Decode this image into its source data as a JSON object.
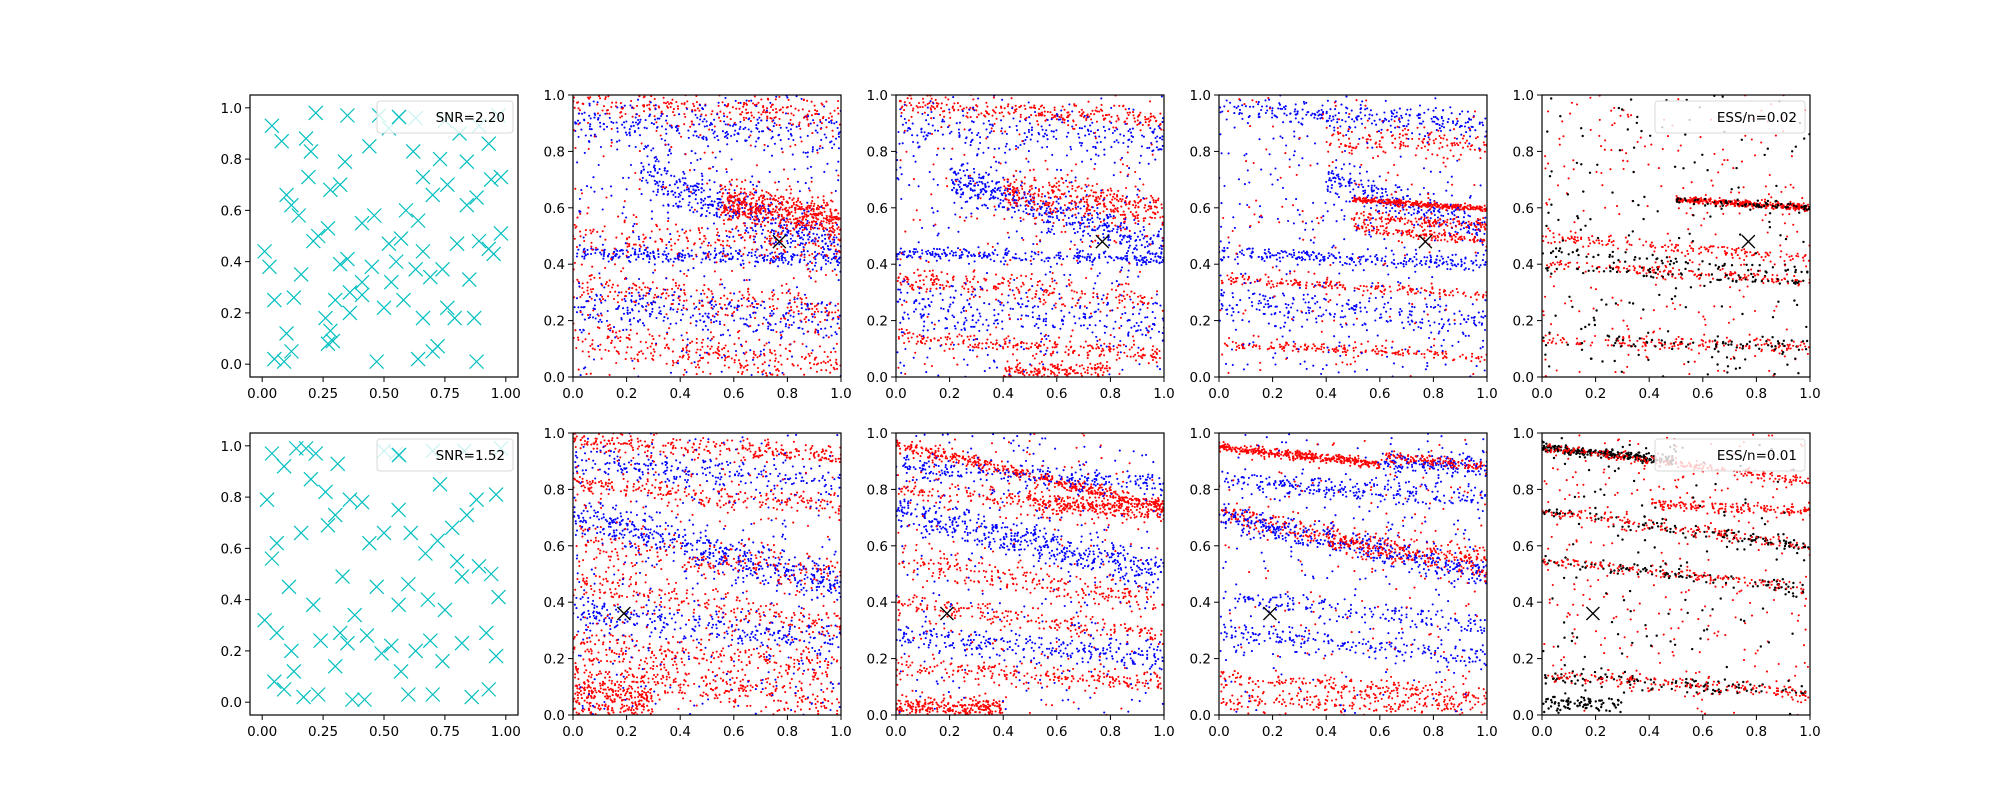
{
  "chart_data": {
    "type": "scatter",
    "layout": {
      "rows": 2,
      "cols": 5
    },
    "colors": {
      "design_points": "#00bfbf",
      "blue": "#0000ff",
      "red": "#ff0000",
      "black": "#000000",
      "truth_marker": "#000000"
    },
    "axes": {
      "design": {
        "xlim": [
          -0.05,
          1.05
        ],
        "ylim": [
          -0.05,
          1.05
        ],
        "xticks": [
          "0.00",
          "0.25",
          "0.50",
          "0.75",
          "1.00"
        ],
        "yticks": [
          "0.0",
          "0.2",
          "0.4",
          "0.6",
          "0.8",
          "1.0"
        ]
      },
      "posterior": {
        "xlim": [
          0,
          1
        ],
        "ylim": [
          0,
          1
        ],
        "xticks": [
          "0.0",
          "0.2",
          "0.4",
          "0.6",
          "0.8",
          "1.0"
        ],
        "yticks": [
          "0.0",
          "0.2",
          "0.4",
          "0.6",
          "0.8",
          "1.0"
        ]
      }
    },
    "rows": [
      {
        "legend_design": "SNR=2.20",
        "legend_ess": "ESS/n=0.02",
        "true_point": [
          0.77,
          0.48
        ],
        "design_points": [
          [
            0.04,
            0.93
          ],
          [
            0.08,
            0.87
          ],
          [
            0.22,
            0.98
          ],
          [
            0.35,
            0.97
          ],
          [
            0.48,
            0.97
          ],
          [
            0.63,
            0.96
          ],
          [
            0.75,
            0.95
          ],
          [
            0.97,
            0.97
          ],
          [
            0.18,
            0.88
          ],
          [
            0.2,
            0.83
          ],
          [
            0.34,
            0.79
          ],
          [
            0.62,
            0.83
          ],
          [
            0.73,
            0.8
          ],
          [
            0.84,
            0.79
          ],
          [
            0.93,
            0.86
          ],
          [
            0.98,
            0.73
          ],
          [
            0.1,
            0.66
          ],
          [
            0.12,
            0.62
          ],
          [
            0.28,
            0.68
          ],
          [
            0.32,
            0.7
          ],
          [
            0.19,
            0.73
          ],
          [
            0.46,
            0.58
          ],
          [
            0.59,
            0.6
          ],
          [
            0.64,
            0.56
          ],
          [
            0.7,
            0.66
          ],
          [
            0.76,
            0.7
          ],
          [
            0.84,
            0.62
          ],
          [
            0.88,
            0.65
          ],
          [
            0.94,
            0.72
          ],
          [
            0.23,
            0.5
          ],
          [
            0.21,
            0.48
          ],
          [
            0.27,
            0.53
          ],
          [
            0.41,
            0.55
          ],
          [
            0.52,
            0.47
          ],
          [
            0.57,
            0.49
          ],
          [
            0.66,
            0.44
          ],
          [
            0.8,
            0.47
          ],
          [
            0.89,
            0.48
          ],
          [
            0.93,
            0.45
          ],
          [
            0.98,
            0.51
          ],
          [
            0.01,
            0.44
          ],
          [
            0.03,
            0.38
          ],
          [
            0.16,
            0.35
          ],
          [
            0.32,
            0.39
          ],
          [
            0.35,
            0.41
          ],
          [
            0.45,
            0.38
          ],
          [
            0.55,
            0.4
          ],
          [
            0.63,
            0.37
          ],
          [
            0.69,
            0.34
          ],
          [
            0.74,
            0.37
          ],
          [
            0.85,
            0.33
          ],
          [
            0.3,
            0.25
          ],
          [
            0.36,
            0.28
          ],
          [
            0.41,
            0.27
          ],
          [
            0.58,
            0.25
          ],
          [
            0.76,
            0.22
          ],
          [
            0.79,
            0.18
          ],
          [
            0.05,
            0.25
          ],
          [
            0.13,
            0.26
          ],
          [
            0.26,
            0.18
          ],
          [
            0.28,
            0.13
          ],
          [
            0.36,
            0.2
          ],
          [
            0.5,
            0.22
          ],
          [
            0.66,
            0.18
          ],
          [
            0.87,
            0.18
          ],
          [
            0.1,
            0.12
          ],
          [
            0.12,
            0.05
          ],
          [
            0.27,
            0.08
          ],
          [
            0.29,
            0.09
          ],
          [
            0.05,
            0.02
          ],
          [
            0.09,
            0.01
          ],
          [
            0.47,
            0.01
          ],
          [
            0.64,
            0.02
          ],
          [
            0.7,
            0.05
          ],
          [
            0.72,
            0.07
          ],
          [
            0.88,
            0.01
          ],
          [
            0.41,
            0.32
          ],
          [
            0.53,
            0.32
          ],
          [
            0.95,
            0.43
          ],
          [
            0.15,
            0.58
          ],
          [
            0.44,
            0.85
          ],
          [
            0.52,
            0.92
          ],
          [
            0.66,
            0.73
          ],
          [
            0.81,
            0.9
          ],
          [
            0.89,
            0.93
          ]
        ]
      },
      {
        "legend_design": "SNR=1.52",
        "legend_ess": "ESS/n=0.01",
        "true_point": [
          0.19,
          0.36
        ],
        "design_points": [
          [
            0.02,
            0.79
          ],
          [
            0.04,
            0.97
          ],
          [
            0.09,
            0.92
          ],
          [
            0.14,
            0.99
          ],
          [
            0.18,
            0.99
          ],
          [
            0.22,
            0.97
          ],
          [
            0.31,
            0.93
          ],
          [
            0.5,
            0.98
          ],
          [
            0.55,
            0.97
          ],
          [
            0.7,
            0.98
          ],
          [
            0.83,
            0.98
          ],
          [
            0.98,
            0.99
          ],
          [
            0.06,
            0.62
          ],
          [
            0.04,
            0.56
          ],
          [
            0.16,
            0.66
          ],
          [
            0.27,
            0.69
          ],
          [
            0.3,
            0.73
          ],
          [
            0.36,
            0.79
          ],
          [
            0.41,
            0.78
          ],
          [
            0.56,
            0.75
          ],
          [
            0.61,
            0.66
          ],
          [
            0.67,
            0.58
          ],
          [
            0.72,
            0.63
          ],
          [
            0.78,
            0.68
          ],
          [
            0.84,
            0.73
          ],
          [
            0.88,
            0.79
          ],
          [
            0.96,
            0.81
          ],
          [
            0.89,
            0.53
          ],
          [
            0.94,
            0.5
          ],
          [
            0.97,
            0.41
          ],
          [
            0.11,
            0.45
          ],
          [
            0.21,
            0.38
          ],
          [
            0.33,
            0.49
          ],
          [
            0.38,
            0.34
          ],
          [
            0.47,
            0.45
          ],
          [
            0.56,
            0.38
          ],
          [
            0.6,
            0.46
          ],
          [
            0.68,
            0.4
          ],
          [
            0.75,
            0.36
          ],
          [
            0.82,
            0.49
          ],
          [
            0.01,
            0.32
          ],
          [
            0.06,
            0.27
          ],
          [
            0.12,
            0.2
          ],
          [
            0.24,
            0.24
          ],
          [
            0.35,
            0.23
          ],
          [
            0.43,
            0.26
          ],
          [
            0.49,
            0.19
          ],
          [
            0.53,
            0.22
          ],
          [
            0.63,
            0.2
          ],
          [
            0.69,
            0.24
          ],
          [
            0.74,
            0.16
          ],
          [
            0.82,
            0.23
          ],
          [
            0.96,
            0.18
          ],
          [
            0.05,
            0.08
          ],
          [
            0.09,
            0.05
          ],
          [
            0.17,
            0.02
          ],
          [
            0.23,
            0.03
          ],
          [
            0.3,
            0.14
          ],
          [
            0.37,
            0.01
          ],
          [
            0.42,
            0.01
          ],
          [
            0.57,
            0.12
          ],
          [
            0.6,
            0.03
          ],
          [
            0.7,
            0.03
          ],
          [
            0.86,
            0.02
          ],
          [
            0.93,
            0.05
          ],
          [
            0.2,
            0.87
          ],
          [
            0.26,
            0.82
          ],
          [
            0.44,
            0.62
          ],
          [
            0.5,
            0.66
          ],
          [
            0.73,
            0.85
          ],
          [
            0.8,
            0.55
          ],
          [
            0.92,
            0.27
          ],
          [
            0.13,
            0.12
          ],
          [
            0.32,
            0.27
          ]
        ]
      }
    ]
  }
}
